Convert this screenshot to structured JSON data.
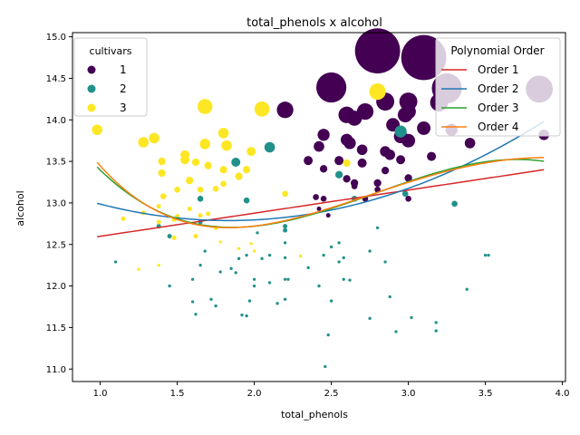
{
  "chart_data": {
    "type": "scatter",
    "title": "total_phenols x alcohol",
    "xlabel": "total_phenols",
    "ylabel": "alcohol",
    "xlim": [
      0.82,
      4.02
    ],
    "ylim": [
      10.85,
      15.05
    ],
    "xticks": [
      "1.0",
      "1.5",
      "2.0",
      "2.5",
      "3.0",
      "3.5",
      "4.0"
    ],
    "yticks": [
      "11.0",
      "11.5",
      "12.0",
      "12.5",
      "13.0",
      "13.5",
      "14.0",
      "14.5",
      "15.0"
    ],
    "grid": false,
    "colors": {
      "1": "#440154",
      "2": "#21918c",
      "3": "#fde725"
    },
    "legend_cultivars": {
      "title": "cultivars",
      "placement": "top-left",
      "entries": [
        "1",
        "2",
        "3"
      ]
    },
    "legend_poly": {
      "title": "Polynomial Order",
      "placement": "top-right",
      "entries": [
        {
          "label": "Order 1",
          "color": "#d62728"
        },
        {
          "label": "Order 2",
          "color": "#1f77b4"
        },
        {
          "label": "Order 3",
          "color": "#2ca02c"
        },
        {
          "label": "Order 4",
          "color": "#ff7f0e"
        }
      ]
    },
    "series": [
      {
        "name": "1",
        "points": [
          [
            2.8,
            14.83,
            30
          ],
          [
            3.1,
            14.75,
            30
          ],
          [
            2.5,
            14.39,
            20
          ],
          [
            3.25,
            14.38,
            20
          ],
          [
            3.85,
            14.37,
            18
          ],
          [
            2.85,
            14.22,
            12
          ],
          [
            3.0,
            14.22,
            12
          ],
          [
            3.2,
            14.21,
            12
          ],
          [
            2.2,
            14.12,
            11
          ],
          [
            2.72,
            14.1,
            11
          ],
          [
            2.6,
            14.06,
            11
          ],
          [
            3.0,
            14.1,
            10
          ],
          [
            2.65,
            14.02,
            10
          ],
          [
            2.98,
            14.06,
            10
          ],
          [
            3.1,
            13.9,
            9
          ],
          [
            2.9,
            13.94,
            9
          ],
          [
            3.28,
            13.88,
            8
          ],
          [
            2.95,
            13.8,
            9
          ],
          [
            3.0,
            13.75,
            9
          ],
          [
            2.6,
            13.76,
            8
          ],
          [
            2.62,
            13.72,
            8
          ],
          [
            2.45,
            13.82,
            8
          ],
          [
            3.4,
            13.72,
            7
          ],
          [
            3.88,
            13.82,
            7
          ],
          [
            2.42,
            13.68,
            7
          ],
          [
            2.7,
            13.64,
            7
          ],
          [
            2.85,
            13.62,
            7
          ],
          [
            2.88,
            13.58,
            7
          ],
          [
            3.15,
            13.56,
            6
          ],
          [
            2.35,
            13.51,
            6
          ],
          [
            2.55,
            13.51,
            6
          ],
          [
            2.95,
            13.52,
            6
          ],
          [
            2.7,
            13.48,
            6
          ],
          [
            2.45,
            13.41,
            5
          ],
          [
            2.85,
            13.39,
            5
          ],
          [
            2.6,
            13.29,
            5
          ],
          [
            2.65,
            13.24,
            5
          ],
          [
            2.8,
            13.24,
            5
          ],
          [
            3.0,
            13.3,
            5
          ],
          [
            2.65,
            13.2,
            4
          ],
          [
            2.8,
            13.16,
            4
          ],
          [
            2.4,
            13.07,
            4
          ],
          [
            2.45,
            13.05,
            4
          ],
          [
            2.72,
            13.05,
            4
          ],
          [
            3.0,
            13.05,
            4
          ],
          [
            2.42,
            12.93,
            3
          ],
          [
            2.48,
            12.85,
            3
          ]
        ]
      },
      {
        "name": "2",
        "points": [
          [
            2.95,
            13.86,
            8
          ],
          [
            2.1,
            13.67,
            7
          ],
          [
            1.88,
            13.49,
            6
          ],
          [
            2.55,
            13.34,
            5
          ],
          [
            2.98,
            13.11,
            4
          ],
          [
            1.65,
            13.05,
            4
          ],
          [
            1.95,
            13.03,
            4
          ],
          [
            3.3,
            12.99,
            4
          ],
          [
            2.65,
            13.05,
            4
          ],
          [
            1.65,
            12.77,
            3
          ],
          [
            1.38,
            12.72,
            3
          ],
          [
            2.2,
            12.72,
            3
          ],
          [
            2.2,
            12.67,
            3
          ],
          [
            2.02,
            12.64,
            2
          ],
          [
            2.8,
            12.7,
            2
          ],
          [
            1.45,
            12.6,
            3
          ],
          [
            2.2,
            12.52,
            2
          ],
          [
            2.55,
            12.52,
            2
          ],
          [
            2.5,
            12.47,
            2
          ],
          [
            1.68,
            12.42,
            2
          ],
          [
            2.75,
            12.42,
            2
          ],
          [
            1.95,
            12.37,
            2
          ],
          [
            2.1,
            12.37,
            2
          ],
          [
            2.45,
            12.37,
            2
          ],
          [
            2.2,
            12.34,
            2
          ],
          [
            2.58,
            12.34,
            2
          ],
          [
            2.05,
            12.33,
            2
          ],
          [
            1.9,
            12.33,
            2
          ],
          [
            2.55,
            12.29,
            2
          ],
          [
            2.85,
            12.29,
            2
          ],
          [
            1.1,
            12.29,
            2
          ],
          [
            1.65,
            12.25,
            2
          ],
          [
            2.35,
            12.22,
            2
          ],
          [
            1.85,
            12.21,
            2
          ],
          [
            1.78,
            12.17,
            2
          ],
          [
            1.88,
            12.16,
            2
          ],
          [
            2.0,
            12.08,
            2
          ],
          [
            2.2,
            12.08,
            2
          ],
          [
            2.22,
            12.08,
            2
          ],
          [
            2.58,
            12.08,
            2
          ],
          [
            2.62,
            12.07,
            2
          ],
          [
            1.6,
            12.08,
            2
          ],
          [
            3.5,
            12.37,
            2
          ],
          [
            3.52,
            12.37,
            2
          ],
          [
            2.1,
            12.04,
            2
          ],
          [
            2.42,
            12.0,
            2
          ],
          [
            2.0,
            12.0,
            2
          ],
          [
            1.45,
            12.0,
            2
          ],
          [
            3.38,
            11.96,
            2
          ],
          [
            2.88,
            11.87,
            2
          ],
          [
            2.2,
            11.84,
            2
          ],
          [
            2.5,
            11.82,
            2
          ],
          [
            1.97,
            11.82,
            2
          ],
          [
            1.6,
            11.81,
            2
          ],
          [
            1.72,
            11.84,
            2
          ],
          [
            2.15,
            11.79,
            2
          ],
          [
            1.75,
            11.76,
            2
          ],
          [
            1.62,
            11.66,
            2
          ],
          [
            1.92,
            11.65,
            2
          ],
          [
            1.95,
            11.64,
            2
          ],
          [
            2.75,
            11.61,
            2
          ],
          [
            3.02,
            11.62,
            2
          ],
          [
            3.18,
            11.56,
            2
          ],
          [
            3.18,
            11.46,
            2
          ],
          [
            2.92,
            11.45,
            2
          ],
          [
            2.48,
            11.41,
            2
          ],
          [
            2.46,
            11.03,
            2
          ]
        ]
      },
      {
        "name": "3",
        "points": [
          [
            2.8,
            14.34,
            11
          ],
          [
            1.68,
            14.16,
            10
          ],
          [
            2.05,
            14.13,
            10
          ],
          [
            0.98,
            13.88,
            7
          ],
          [
            1.8,
            13.84,
            7
          ],
          [
            1.35,
            13.78,
            7
          ],
          [
            1.28,
            13.73,
            7
          ],
          [
            1.68,
            13.71,
            7
          ],
          [
            1.82,
            13.69,
            7
          ],
          [
            1.98,
            13.62,
            6
          ],
          [
            1.55,
            13.58,
            6
          ],
          [
            1.55,
            13.52,
            6
          ],
          [
            1.4,
            13.5,
            5
          ],
          [
            1.62,
            13.49,
            5
          ],
          [
            2.6,
            13.48,
            5
          ],
          [
            1.7,
            13.45,
            5
          ],
          [
            1.8,
            13.4,
            5
          ],
          [
            1.95,
            13.4,
            5
          ],
          [
            1.4,
            13.36,
            5
          ],
          [
            1.9,
            13.32,
            5
          ],
          [
            1.58,
            13.27,
            5
          ],
          [
            1.8,
            13.23,
            4
          ],
          [
            1.75,
            13.17,
            4
          ],
          [
            1.5,
            13.16,
            4
          ],
          [
            1.65,
            13.16,
            4
          ],
          [
            2.2,
            13.11,
            4
          ],
          [
            1.41,
            13.08,
            4
          ],
          [
            1.58,
            12.93,
            3
          ],
          [
            1.38,
            12.96,
            3
          ],
          [
            1.28,
            12.88,
            3
          ],
          [
            1.7,
            12.87,
            3
          ],
          [
            1.65,
            12.85,
            3
          ],
          [
            1.5,
            12.84,
            3
          ],
          [
            1.48,
            12.8,
            3
          ],
          [
            1.15,
            12.81,
            3
          ],
          [
            1.38,
            12.77,
            3
          ],
          [
            1.75,
            12.7,
            3
          ],
          [
            1.48,
            12.58,
            3
          ],
          [
            1.62,
            12.6,
            3
          ],
          [
            1.78,
            12.53,
            2
          ],
          [
            1.98,
            12.51,
            2
          ],
          [
            1.9,
            12.45,
            2
          ],
          [
            2.0,
            12.42,
            2
          ],
          [
            2.3,
            12.36,
            2
          ],
          [
            1.38,
            12.25,
            2
          ],
          [
            1.25,
            12.2,
            2
          ]
        ]
      }
    ]
  }
}
